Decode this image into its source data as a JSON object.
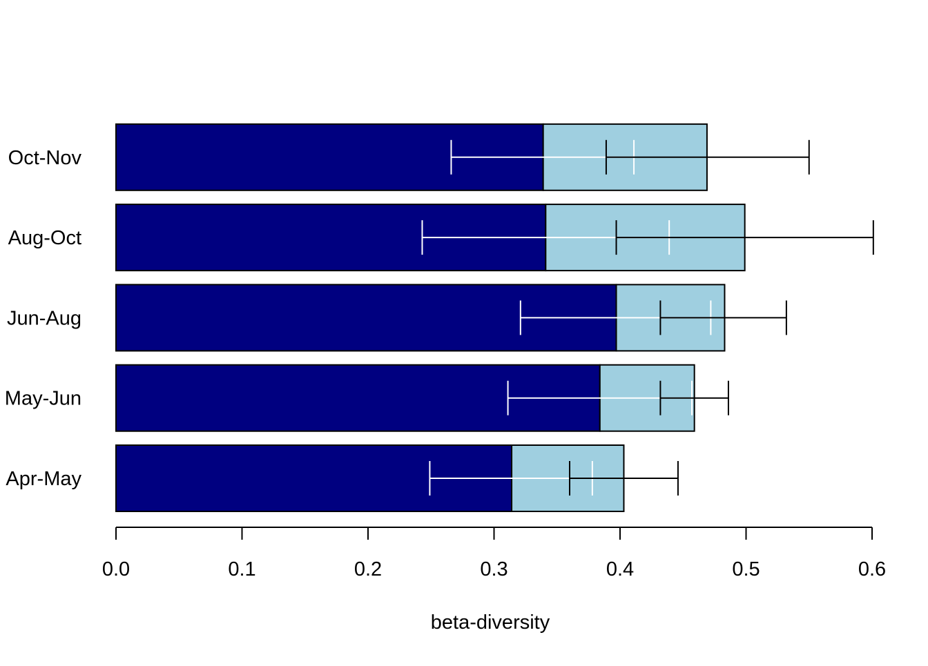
{
  "chart_data": {
    "type": "bar",
    "orientation": "horizontal",
    "stacked": true,
    "categories": [
      "Apr-May",
      "May-Jun",
      "Jun-Aug",
      "Aug-Oct",
      "Oct-Nov"
    ],
    "series": [
      {
        "color": "#000080",
        "values": [
          0.314,
          0.384,
          0.397,
          0.341,
          0.339
        ],
        "error_bars": {
          "color": "#ffffff",
          "low": [
            0.249,
            0.311,
            0.321,
            0.243,
            0.266
          ],
          "high": [
            0.378,
            0.457,
            0.472,
            0.439,
            0.411
          ]
        }
      },
      {
        "color": "#9fcfe0",
        "values": [
          0.089,
          0.075,
          0.086,
          0.158,
          0.13
        ],
        "totals": [
          0.403,
          0.459,
          0.483,
          0.499,
          0.469
        ],
        "error_bars": {
          "color": "#000000",
          "low": [
            0.36,
            0.432,
            0.432,
            0.397,
            0.389
          ],
          "high": [
            0.446,
            0.486,
            0.532,
            0.601,
            0.55
          ]
        }
      }
    ],
    "xlabel": "beta-diversity",
    "ylabel": "",
    "title": "",
    "xlim": [
      0,
      0.6
    ],
    "xticks": [
      "0.0",
      "0.1",
      "0.2",
      "0.3",
      "0.4",
      "0.5",
      "0.6"
    ],
    "grid": false,
    "legend": false
  }
}
